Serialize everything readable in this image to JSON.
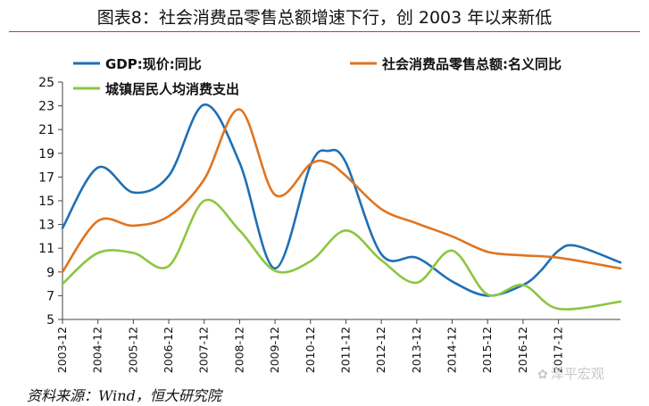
{
  "header": {
    "title": "图表8：社会消费品零售总额增速下行，创 2003 年以来新低"
  },
  "footer": {
    "source": "资料来源：Wind，恒大研究院",
    "watermark": "泽平宏观"
  },
  "chart_data": {
    "type": "line",
    "title": "图表8：社会消费品零售总额增速下行，创 2003 年以来新低",
    "xlabel": "",
    "ylabel": "",
    "ylim": [
      5,
      25
    ],
    "yticks": [
      5,
      7,
      9,
      11,
      13,
      15,
      17,
      19,
      21,
      23,
      25
    ],
    "xlim": [
      2003.0,
      2018.75
    ],
    "x_tick_values": [
      2003,
      2004,
      2005,
      2006,
      2007,
      2008,
      2009,
      2010,
      2011,
      2012,
      2013,
      2014,
      2015,
      2016,
      2017
    ],
    "x_tick_labels": [
      "2003-12",
      "2004-12",
      "2005-12",
      "2006-12",
      "2007-12",
      "2008-12",
      "2009-12",
      "2010-12",
      "2011-12",
      "2012-12",
      "2013-12",
      "2014-12",
      "2015-12",
      "2016-12",
      "2017-12"
    ],
    "grid": false,
    "legend": "top",
    "series": [
      {
        "name": "GDP:现价:同比",
        "color": "#1f6fb4",
        "x": [
          2003,
          2004,
          2005,
          2006,
          2007,
          2008,
          2009,
          2010,
          2010.5,
          2011,
          2012,
          2013,
          2014,
          2015,
          2016,
          2016.5,
          2017,
          2017.5,
          2018.75
        ],
        "y": [
          12.7,
          17.8,
          15.7,
          17.1,
          23.1,
          18.2,
          9.3,
          18.0,
          19.2,
          18.2,
          10.5,
          10.2,
          8.2,
          7.0,
          7.9,
          9.1,
          10.8,
          11.2,
          9.8
        ]
      },
      {
        "name": "社会消费品零售总额:名义同比",
        "color": "#e07420",
        "x": [
          2003,
          2004,
          2005,
          2006,
          2007,
          2008,
          2009,
          2010,
          2010.5,
          2011,
          2012,
          2013,
          2014,
          2015,
          2016,
          2017,
          2018.75
        ],
        "y": [
          9.0,
          13.3,
          12.9,
          13.7,
          16.8,
          22.7,
          15.5,
          18.1,
          18.2,
          17.1,
          14.3,
          13.1,
          12.0,
          10.7,
          10.4,
          10.2,
          9.3
        ]
      },
      {
        "name": "城镇居民人均消费支出",
        "color": "#8cc63f",
        "x": [
          2003,
          2004,
          2005,
          2006,
          2007,
          2008,
          2009,
          2010,
          2011,
          2012,
          2013,
          2014,
          2015,
          2016,
          2017,
          2018.75
        ],
        "y": [
          8.0,
          10.6,
          10.6,
          9.5,
          15.0,
          12.5,
          9.1,
          9.9,
          12.5,
          10.0,
          8.1,
          10.8,
          7.1,
          7.9,
          5.9,
          6.5
        ]
      }
    ]
  }
}
